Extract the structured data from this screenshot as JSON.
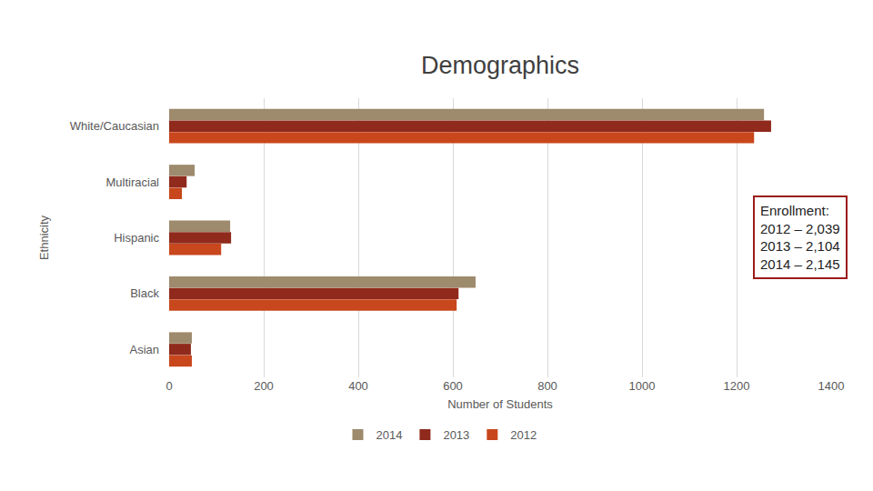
{
  "chart_data": {
    "type": "bar",
    "orientation": "horizontal",
    "title": "Demographics",
    "x_label": "Number of Students",
    "y_label": "Ethnicity",
    "categories": [
      "White/Caucasian",
      "Multiracial",
      "Hispanic",
      "Black",
      "Asian"
    ],
    "series": [
      {
        "name": "2014",
        "color": "#9e8a6c",
        "values": [
          1258,
          54,
          129,
          648,
          48
        ]
      },
      {
        "name": "2013",
        "color": "#8f2a1c",
        "values": [
          1273,
          37,
          131,
          612,
          46
        ]
      },
      {
        "name": "2012",
        "color": "#c8471c",
        "values": [
          1237,
          27,
          110,
          608,
          48
        ]
      }
    ],
    "xlim": [
      0,
      1400
    ],
    "xticks": [
      0,
      200,
      400,
      600,
      800,
      1000,
      1200,
      1400
    ],
    "grid": true,
    "legend": "bottom",
    "annotation": [
      "Enrollment:",
      "2012 – 2,039",
      "2013 – 2,104",
      "2014 – 2,145"
    ]
  }
}
